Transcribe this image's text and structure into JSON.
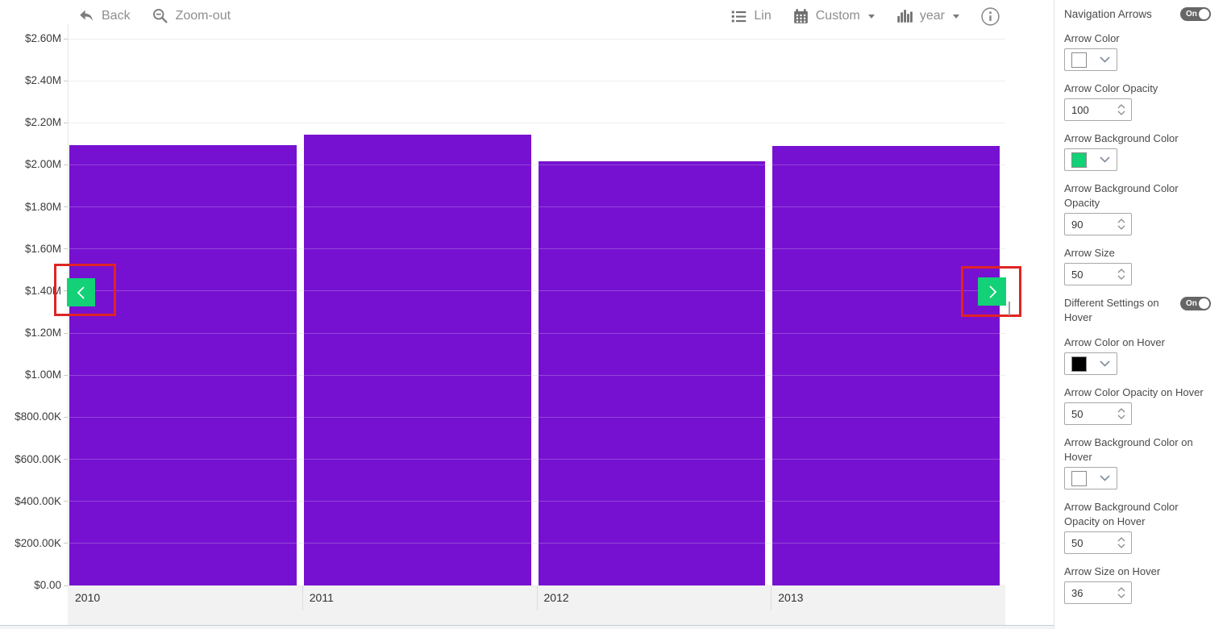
{
  "chart": {
    "toolbar": {
      "back_label": "Back",
      "zoom_out_label": "Zoom-out",
      "lin_label": "Lin",
      "custom_label": "Custom",
      "year_label": "year"
    },
    "chart_data": {
      "type": "bar",
      "categories": [
        "2010",
        "2011",
        "2012",
        "2013"
      ],
      "values": [
        2094000,
        2143000,
        2017000,
        2090000
      ],
      "title": "",
      "xlabel": "",
      "ylabel": "",
      "ylim": [
        0,
        2600000
      ],
      "y_tick_step": 200000,
      "y_tick_labels_top_to_bottom": [
        "$2.60M",
        "$2.40M",
        "$2.20M",
        "$2.00M",
        "$1.80M",
        "$1.60M",
        "$1.40M",
        "$1.20M",
        "$1.00M",
        "$800.00K",
        "$600.00K",
        "$400.00K",
        "$200.00K",
        "$0.00"
      ],
      "bar_color": "#7711d1",
      "grid": true,
      "legend": "none"
    },
    "nav_arrows": {
      "background_color": "#12d176",
      "chevron_color": "#ffffff",
      "highlight_box_color": "#e02424"
    }
  },
  "panel": {
    "title": "Navigation Arrows",
    "nav_toggle_state": "On",
    "arrow_color": {
      "label": "Arrow Color",
      "swatch": "#ffffff"
    },
    "arrow_color_opacity": {
      "label": "Arrow Color Opacity",
      "value": "100"
    },
    "arrow_bg_color": {
      "label": "Arrow Background Color",
      "swatch": "#12d176"
    },
    "arrow_bg_color_opacity": {
      "label": "Arrow Background Color Opacity",
      "value": "90"
    },
    "arrow_size": {
      "label": "Arrow Size",
      "value": "50"
    },
    "hover_toggle": {
      "label": "Different Settings on Hover",
      "state": "On"
    },
    "arrow_color_hover": {
      "label": "Arrow Color on Hover",
      "swatch": "#000000"
    },
    "arrow_color_opacity_hover": {
      "label": "Arrow Color Opacity on Hover",
      "value": "50"
    },
    "arrow_bg_color_hover": {
      "label": "Arrow Background Color on Hover",
      "swatch": "#ffffff"
    },
    "arrow_bg_color_opacity_hover": {
      "label": "Arrow Background Color Opacity on Hover",
      "value": "50"
    },
    "arrow_size_hover": {
      "label": "Arrow Size on Hover",
      "value": "36"
    }
  }
}
